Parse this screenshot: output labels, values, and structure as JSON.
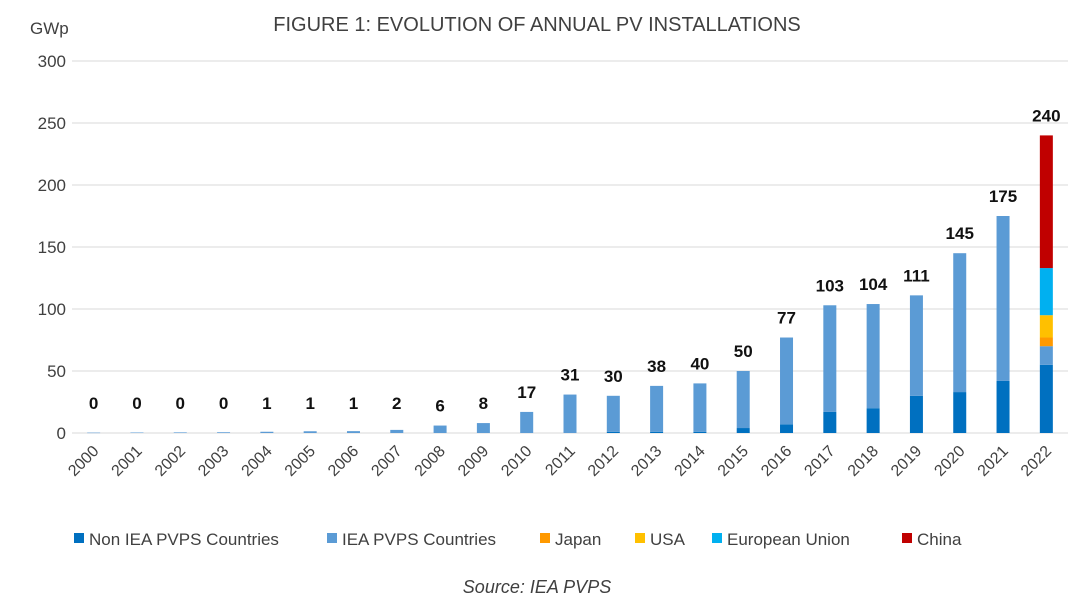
{
  "chart_data": {
    "type": "bar",
    "stacked": true,
    "title": "FIGURE 1: EVOLUTION OF ANNUAL PV INSTALLATIONS",
    "ylabel": "GWp",
    "xlabel": "",
    "ylim": [
      0,
      300
    ],
    "yticks": [
      0,
      50,
      100,
      150,
      200,
      250,
      300
    ],
    "grid": true,
    "legend_position": "bottom",
    "categories": [
      "2000",
      "2001",
      "2002",
      "2003",
      "2004",
      "2005",
      "2006",
      "2007",
      "2008",
      "2009",
      "2010",
      "2011",
      "2012",
      "2013",
      "2014",
      "2015",
      "2016",
      "2017",
      "2018",
      "2019",
      "2020",
      "2021",
      "2022"
    ],
    "totals": [
      0,
      0,
      0,
      0,
      1,
      1,
      1,
      2,
      6,
      8,
      17,
      31,
      30,
      38,
      40,
      50,
      77,
      103,
      104,
      111,
      145,
      175,
      240
    ],
    "series": [
      {
        "name": "Non IEA PVPS Countries",
        "color": "#0070c0",
        "values": [
          0,
          0,
          0,
          0,
          0,
          0,
          0,
          0,
          0,
          0,
          0,
          0,
          1,
          1,
          1,
          4,
          7,
          17,
          20,
          30,
          33,
          42,
          55
        ]
      },
      {
        "name": "IEA PVPS Countries",
        "color": "#5b9bd5",
        "values": [
          0.3,
          0.4,
          0.5,
          0.6,
          1,
          1.4,
          1.5,
          2.5,
          6,
          8,
          17,
          31,
          29,
          37,
          39,
          46,
          70,
          86,
          84,
          81,
          112,
          133,
          15
        ]
      },
      {
        "name": "Japan",
        "color": "#ff9900",
        "values": [
          0,
          0,
          0,
          0,
          0,
          0,
          0,
          0,
          0,
          0,
          0,
          0,
          0,
          0,
          0,
          0,
          0,
          0,
          0,
          0,
          0,
          0,
          7
        ]
      },
      {
        "name": "USA",
        "color": "#ffc000",
        "values": [
          0,
          0,
          0,
          0,
          0,
          0,
          0,
          0,
          0,
          0,
          0,
          0,
          0,
          0,
          0,
          0,
          0,
          0,
          0,
          0,
          0,
          0,
          18
        ]
      },
      {
        "name": "European Union",
        "color": "#00b0f0",
        "values": [
          0,
          0,
          0,
          0,
          0,
          0,
          0,
          0,
          0,
          0,
          0,
          0,
          0,
          0,
          0,
          0,
          0,
          0,
          0,
          0,
          0,
          0,
          38
        ]
      },
      {
        "name": "China",
        "color": "#c00000",
        "values": [
          0,
          0,
          0,
          0,
          0,
          0,
          0,
          0,
          0,
          0,
          0,
          0,
          0,
          0,
          0,
          0,
          0,
          0,
          0,
          0,
          0,
          0,
          107
        ]
      }
    ],
    "source": "Source: IEA PVPS"
  }
}
